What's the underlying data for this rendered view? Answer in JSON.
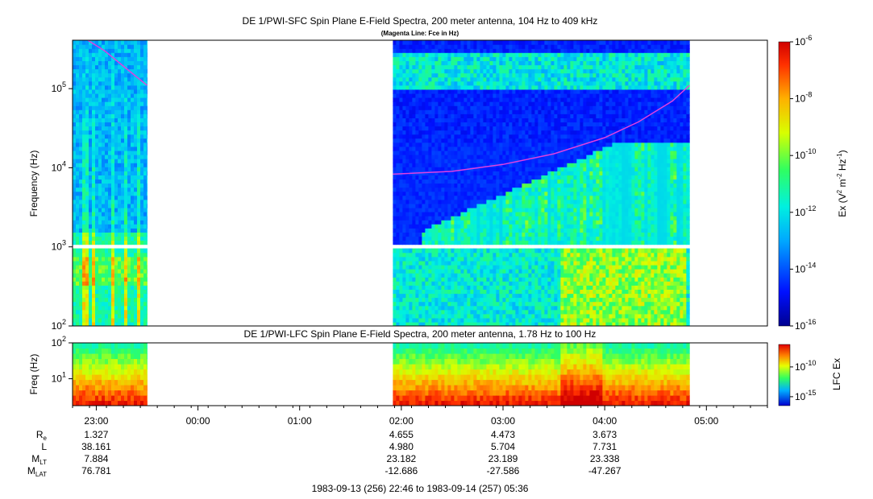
{
  "chart_data": [
    {
      "type": "heatmap",
      "title": "DE 1/PWI-SFC  Spin Plane E-Field Spectra, 200 meter antenna, 104 Hz to 409 kHz",
      "subtitle": "(Magenta Line: Fce in Hz)",
      "ylabel": "Frequency (Hz)",
      "yscale": "log",
      "ylim": [
        100,
        409000
      ],
      "yticks": [
        {
          "base": "10",
          "exp": "2"
        },
        {
          "base": "10",
          "exp": "3"
        },
        {
          "base": "10",
          "exp": "4"
        },
        {
          "base": "10",
          "exp": "5"
        }
      ],
      "data_intervals": [
        [
          "22:46",
          "23:30"
        ],
        [
          "01:55",
          "04:50"
        ]
      ],
      "fce_line_color": "#e040e0",
      "fce_segments": [
        {
          "times": [
            "22:55",
            "23:05",
            "23:15",
            "23:30"
          ],
          "values": [
            409000,
            300000,
            200000,
            110000
          ]
        },
        {
          "times": [
            "01:55",
            "02:30",
            "03:00",
            "03:30",
            "04:00",
            "04:20",
            "04:40",
            "04:50"
          ],
          "values": [
            8300,
            9000,
            11000,
            15000,
            24000,
            38000,
            70000,
            110000
          ]
        }
      ],
      "colorbar": {
        "label": "Ex (V",
        "label_sup1": "2",
        "label_mid": " m",
        "label_sup2": "-2",
        "label_mid2": " Hz",
        "label_sup3": "-1",
        "label_end": ")",
        "scale": "log",
        "ticks": [
          {
            "base": "10",
            "exp": "-6"
          },
          {
            "base": "10",
            "exp": "-8"
          },
          {
            "base": "10",
            "exp": "-10"
          },
          {
            "base": "10",
            "exp": "-12"
          },
          {
            "base": "10",
            "exp": "-14"
          },
          {
            "base": "10",
            "exp": "-16"
          }
        ]
      }
    },
    {
      "type": "heatmap",
      "title": "DE 1/PWI-LFC  Spin Plane E-Field Spectra, 200 meter antenna, 1.78 Hz to 100 Hz",
      "ylabel": "Freq (Hz)",
      "yscale": "log",
      "ylim": [
        1.78,
        100
      ],
      "yticks": [
        {
          "base": "10",
          "exp": "2"
        },
        {
          "base": "10",
          "exp": "1"
        }
      ],
      "data_intervals": [
        [
          "22:46",
          "23:30"
        ],
        [
          "01:55",
          "04:50"
        ]
      ],
      "colorbar": {
        "label": "LFC Ex",
        "scale": "log",
        "ticks": [
          {
            "base": "10",
            "exp": "-10"
          },
          {
            "base": "10",
            "exp": "-15"
          }
        ]
      }
    }
  ],
  "xaxis": {
    "start": "22:46",
    "end": "05:36",
    "ticks": [
      "23:00",
      "00:00",
      "01:00",
      "02:00",
      "03:00",
      "04:00",
      "05:00"
    ]
  },
  "ephemeris": {
    "rows": [
      {
        "label": "R",
        "sub": "e",
        "values": [
          "1.327",
          "",
          "",
          "4.655",
          "4.473",
          "3.673",
          ""
        ]
      },
      {
        "label": "L",
        "sub": "",
        "values": [
          "38.161",
          "",
          "",
          "4.980",
          "5.704",
          "7.731",
          ""
        ]
      },
      {
        "label": "M",
        "sub": "LT",
        "values": [
          "7.884",
          "",
          "",
          "23.182",
          "23.189",
          "23.338",
          ""
        ]
      },
      {
        "label": "M",
        "sub": "LAT",
        "values": [
          "76.781",
          "",
          "",
          "-12.686",
          "-27.586",
          "-47.267",
          ""
        ]
      }
    ]
  },
  "footer": "1983-09-13 (256) 22:46 to 1983-09-14 (257) 05:36"
}
